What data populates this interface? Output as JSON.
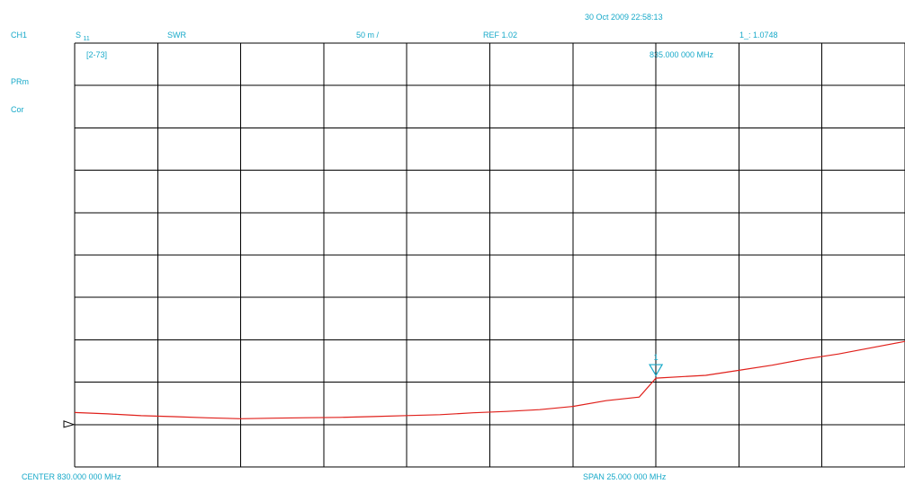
{
  "header": {
    "timestamp": "30 Oct 2009  22:58:13",
    "channel": "CH1",
    "param": "S",
    "param_sub": "11",
    "format": "SWR",
    "scale": "50 m /",
    "ref": "REF 1.02",
    "marker_readout": "1_: 1.0748",
    "marker_freq": "835.000 000 MHz",
    "marker_box": "[2-73]"
  },
  "side": {
    "prm": "PRm",
    "cor": "Cor"
  },
  "footer": {
    "center": "CENTER  830.000 000 MHz",
    "span": "SPAN   25.000 000 MHz"
  },
  "colors": {
    "text": "#17a9c9",
    "grid": "#000000",
    "trace": "#e0201b"
  },
  "chart_data": {
    "type": "line",
    "title": "",
    "xlabel": "",
    "ylabel": "",
    "x_unit": "MHz",
    "xlim": [
      817.5,
      842.5
    ],
    "ylim": [
      0.97,
      1.47
    ],
    "grid": true,
    "divisions": {
      "x": 10,
      "y": 10
    },
    "reference_level": 1.02,
    "series": [
      {
        "x": [
          817.5,
          818.5,
          819.5,
          820.5,
          821.5,
          822.5,
          823.5,
          824.5,
          825.5,
          826.5,
          827.5,
          828.5,
          829.5,
          830.5,
          831.5,
          832.5,
          833.5,
          834.5,
          835.0,
          836.5,
          837.5,
          838.5,
          839.5,
          840.5,
          841.5,
          842.5
        ],
        "values": [
          1.0342,
          1.0326,
          1.0305,
          1.0293,
          1.0279,
          1.0269,
          1.0275,
          1.028,
          1.0285,
          1.0294,
          1.0306,
          1.0317,
          1.0339,
          1.0355,
          1.0376,
          1.0414,
          1.0482,
          1.0524,
          1.0748,
          1.0781,
          1.084,
          1.09,
          1.0973,
          1.1033,
          1.1107,
          1.1181
        ]
      }
    ],
    "markers": [
      {
        "label": "1",
        "x": 835.0,
        "value": 1.0748
      }
    ]
  }
}
